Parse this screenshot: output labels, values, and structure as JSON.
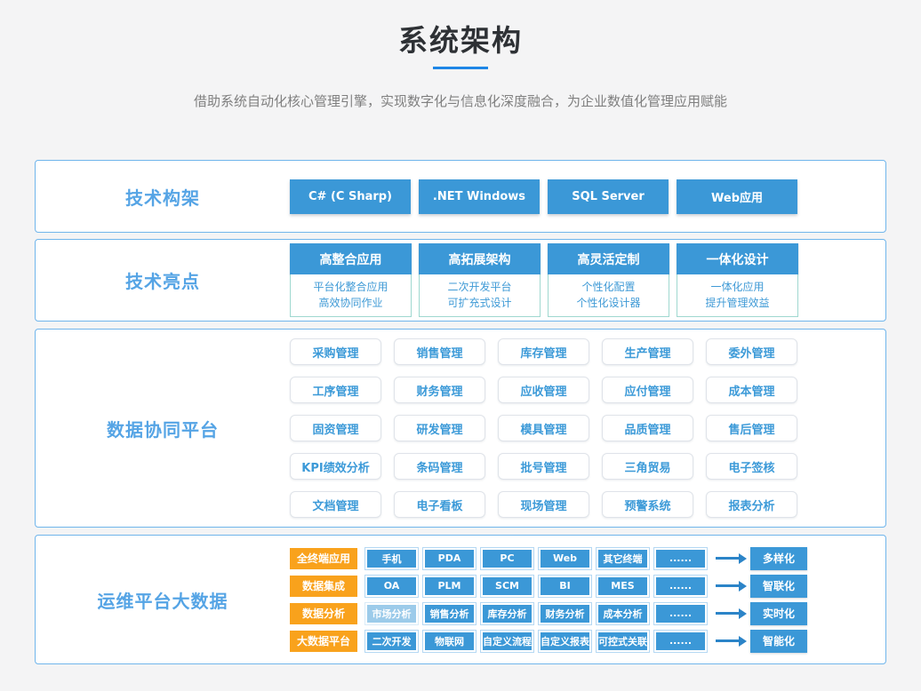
{
  "header": {
    "title": "系统架构",
    "subtitle": "借助系统自动化核心管理引擎，实现数字化与信息化深度融合，为企业数值化管理应用赋能"
  },
  "colors": {
    "accent_blue": "#1e86e6",
    "button_blue": "#3b98d7",
    "label_blue": "#55a4e5",
    "orange": "#f9a21c",
    "box_border": "#70b5eb",
    "page_background": "#f4f4f5"
  },
  "sections": {
    "tech_stack": {
      "label": "技术构架",
      "buttons": [
        "C# (C Sharp)",
        ".NET Windows",
        "SQL Server",
        "Web应用"
      ]
    },
    "highlights": {
      "label": "技术亮点",
      "cards": [
        {
          "title": "高整合应用",
          "lines": [
            "平台化整合应用",
            "高效协同作业"
          ]
        },
        {
          "title": "高拓展架构",
          "lines": [
            "二次开发平台",
            "可扩充式设计"
          ]
        },
        {
          "title": "高灵活定制",
          "lines": [
            "个性化配置",
            "个性化设计器"
          ]
        },
        {
          "title": "一体化设计",
          "lines": [
            "一体化应用",
            "提升管理效益"
          ]
        }
      ]
    },
    "platform": {
      "label": "数据协同平台",
      "modules": [
        "采购管理",
        "销售管理",
        "库存管理",
        "生产管理",
        "委外管理",
        "工序管理",
        "财务管理",
        "应收管理",
        "应付管理",
        "成本管理",
        "固资管理",
        "研发管理",
        "模具管理",
        "品质管理",
        "售后管理",
        "KPI绩效分析",
        "条码管理",
        "批号管理",
        "三角贸易",
        "电子签核",
        "文档管理",
        "电子看板",
        "现场管理",
        "预警系统",
        "报表分析"
      ]
    },
    "bigdata": {
      "label": "运维平台大数据",
      "rows": [
        {
          "category": "全终端应用",
          "items": [
            "手机",
            "PDA",
            "PC",
            "Web",
            "其它终端",
            "......"
          ],
          "result": "多样化"
        },
        {
          "category": "数据集成",
          "items": [
            "OA",
            "PLM",
            "SCM",
            "BI",
            "MES",
            "......"
          ],
          "result": "智联化"
        },
        {
          "category": "数据分析",
          "items": [
            "市场分析",
            "销售分析",
            "库存分析",
            "财务分析",
            "成本分析",
            "......"
          ],
          "result": "实时化"
        },
        {
          "category": "大数据平台",
          "items": [
            "二次开发",
            "物联网",
            "自定义流程",
            "自定义报表",
            "可控式关联",
            "......"
          ],
          "result": "智能化"
        }
      ]
    }
  }
}
